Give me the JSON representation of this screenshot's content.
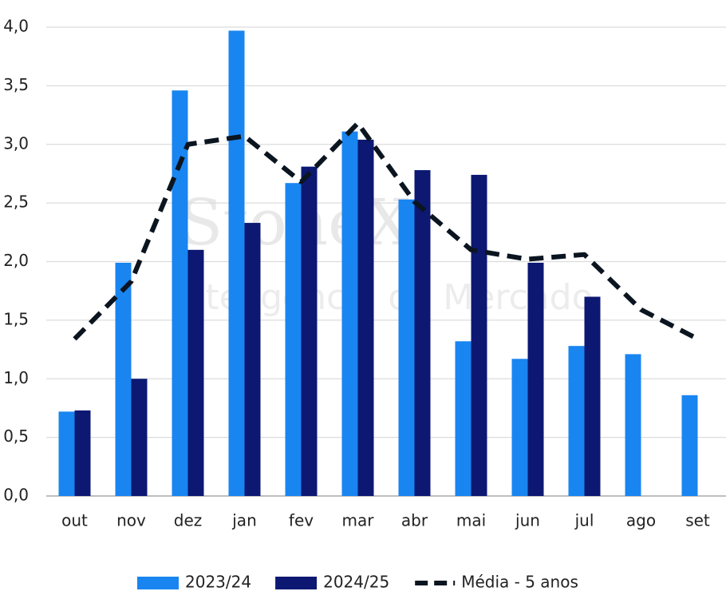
{
  "chart_data": {
    "type": "bar-line",
    "watermark": [
      "StoneX",
      "Inteligência de Mercado"
    ],
    "categories": [
      "out",
      "nov",
      "dez",
      "jan",
      "fev",
      "mar",
      "abr",
      "mai",
      "jun",
      "jul",
      "ago",
      "set"
    ],
    "series": [
      {
        "name": "2023/24",
        "type": "bar",
        "color": "#1985f1",
        "values": [
          0.72,
          1.99,
          3.46,
          3.97,
          2.67,
          3.11,
          2.53,
          1.32,
          1.17,
          1.28,
          1.21,
          0.86
        ]
      },
      {
        "name": "2024/25",
        "type": "bar",
        "color": "#0c1872",
        "values": [
          0.73,
          1.0,
          2.1,
          2.33,
          2.81,
          3.04,
          2.78,
          2.74,
          1.99,
          1.7,
          null,
          null
        ]
      },
      {
        "name": "Média - 5 anos",
        "type": "line",
        "dashed": true,
        "color": "#0b1520",
        "values": [
          1.34,
          1.83,
          3.0,
          3.07,
          2.68,
          3.18,
          2.51,
          2.1,
          2.02,
          2.06,
          1.59,
          1.34
        ]
      }
    ],
    "ylim": [
      0,
      4
    ],
    "yticks": [
      {
        "value": 0,
        "label": "0,0"
      },
      {
        "value": 0.5,
        "label": "0,5"
      },
      {
        "value": 1,
        "label": "1,0"
      },
      {
        "value": 1.5,
        "label": "1,5"
      },
      {
        "value": 2,
        "label": "2,0"
      },
      {
        "value": 2.5,
        "label": "2,5"
      },
      {
        "value": 3,
        "label": "3,0"
      },
      {
        "value": 3.5,
        "label": "3,5"
      },
      {
        "value": 4,
        "label": "4,0"
      }
    ],
    "grid": true,
    "legend": "bottom"
  }
}
